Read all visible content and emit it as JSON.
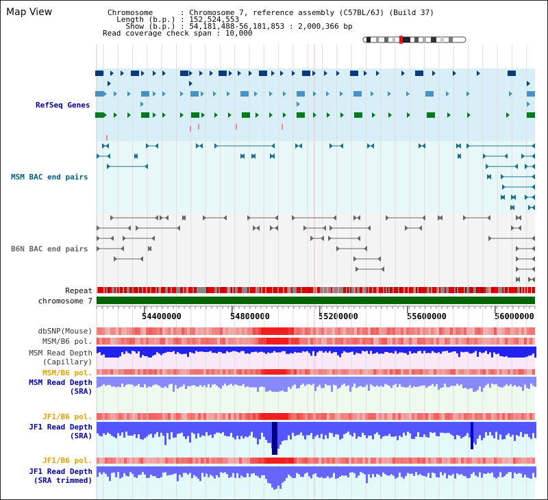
{
  "header": {
    "title": "Map View",
    "chromosome_label": "Chromosome      : ",
    "chromosome_value": "Chromosome 7, reference assembly (C57BL/6J) (Build 37)",
    "length_label": "  Length (b.p.) : ",
    "length_value": "152,524,553",
    "show_label": "    Show (b.p.) : ",
    "show_value": "54,181,488-56,181,853 : 2,000,366 bp",
    "span_label": "Read coverage check span : ",
    "span_value": "10,000"
  },
  "tracks": {
    "refseq": {
      "label": "RefSeq Genes",
      "color": "#000099",
      "bg": "#d9eff8"
    },
    "msm_bac": {
      "label": "MSM BAC end pairs",
      "color": "#006080",
      "bg": "#e8f8f8"
    },
    "b6n_bac": {
      "label": "B6N BAC end pairs",
      "color": "#666666",
      "bg": "#f4f4f4"
    },
    "repeat": {
      "label": "Repeat"
    },
    "chromosome": {
      "label": "chromosome 7",
      "color": "#006400"
    },
    "dbsnp": {
      "label": "dbSNP(Mouse)"
    },
    "msm_pol": {
      "label": "MSM/B6 pol."
    },
    "msm_depth_cap": {
      "line1": "MSM Read Depth",
      "line2": "(Capillary)"
    },
    "msm_pol_sra": {
      "label": "MSM/B6 pol.",
      "color": "#e8a000"
    },
    "msm_depth_sra": {
      "line1": "MSM Read Depth",
      "line2": "(SRA)",
      "color": "#0000aa"
    },
    "jf1_pol": {
      "label": "JF1/B6 pol.",
      "color": "#e8a000"
    },
    "jf1_depth": {
      "line1": "JF1 Read Depth",
      "line2": "(SRA)",
      "color": "#0000aa"
    },
    "jf1_pol_trim": {
      "label": "JF1/B6 pol.",
      "color": "#e8a000"
    },
    "jf1_depth_trim": {
      "line1": "JF1 Read Depth",
      "line2": "(SRA trimmed)",
      "color": "#0000aa"
    }
  },
  "axis": {
    "ticks": [
      "54400000",
      "54800000",
      "55200000",
      "55600000",
      "56000000"
    ],
    "tick_values": [
      54400000,
      54800000,
      55200000,
      55600000,
      56000000
    ],
    "range": [
      54181488,
      56181853
    ]
  },
  "colors": {
    "gene_dark": "#0a3a78",
    "gene_mid": "#4a90c0",
    "gene_green": "#007a1e",
    "bac_teal": "#1a6f8f",
    "bac_gray": "#666666",
    "repeat_red": "#e00000",
    "snp_red": "#e02020",
    "depth_blue": "#3333ee",
    "depth_light": "#8888ff"
  }
}
